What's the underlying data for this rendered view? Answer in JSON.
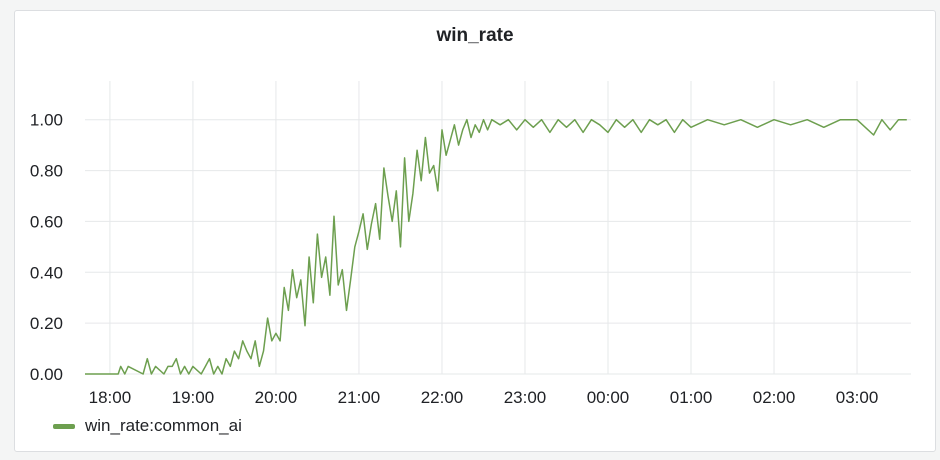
{
  "chart_data": {
    "type": "line",
    "title": "win_rate",
    "xlabel": "",
    "ylabel": "",
    "x_unit": "hours since 18:00",
    "xlim": [
      -0.3,
      9.65
    ],
    "ylim": [
      0,
      1.05
    ],
    "x_tick_labels": [
      "18:00",
      "19:00",
      "20:00",
      "21:00",
      "22:00",
      "23:00",
      "00:00",
      "01:00",
      "02:00",
      "03:00"
    ],
    "y_ticks": [
      0,
      0.2,
      0.4,
      0.6,
      0.8,
      1.0
    ],
    "y_tick_labels": [
      "0.00",
      "0.20",
      "0.40",
      "0.60",
      "0.80",
      "1.00"
    ],
    "grid": true,
    "legend_position": "bottom-left",
    "series": [
      {
        "name": "win_rate:common_ai",
        "color": "#6d9f4f",
        "x": [
          -0.3,
          0.1,
          0.13,
          0.18,
          0.22,
          0.4,
          0.45,
          0.5,
          0.55,
          0.65,
          0.7,
          0.75,
          0.8,
          0.85,
          0.9,
          0.95,
          1.0,
          1.1,
          1.15,
          1.2,
          1.25,
          1.3,
          1.35,
          1.4,
          1.45,
          1.5,
          1.55,
          1.6,
          1.65,
          1.7,
          1.75,
          1.8,
          1.85,
          1.9,
          1.95,
          2.0,
          2.05,
          2.1,
          2.15,
          2.2,
          2.25,
          2.3,
          2.35,
          2.4,
          2.45,
          2.5,
          2.55,
          2.6,
          2.65,
          2.7,
          2.75,
          2.8,
          2.85,
          2.9,
          2.95,
          3.0,
          3.05,
          3.1,
          3.15,
          3.2,
          3.25,
          3.3,
          3.35,
          3.4,
          3.45,
          3.5,
          3.55,
          3.6,
          3.65,
          3.7,
          3.75,
          3.8,
          3.85,
          3.9,
          3.95,
          4.0,
          4.05,
          4.1,
          4.15,
          4.2,
          4.25,
          4.3,
          4.35,
          4.4,
          4.45,
          4.5,
          4.55,
          4.6,
          4.7,
          4.8,
          4.9,
          5.0,
          5.1,
          5.2,
          5.3,
          5.4,
          5.5,
          5.6,
          5.7,
          5.8,
          5.9,
          6.0,
          6.1,
          6.2,
          6.3,
          6.4,
          6.5,
          6.6,
          6.7,
          6.8,
          6.9,
          7.0,
          7.2,
          7.4,
          7.6,
          7.8,
          8.0,
          8.2,
          8.4,
          8.6,
          8.8,
          9.0,
          9.2,
          9.3,
          9.4,
          9.5,
          9.6
        ],
        "values": [
          0,
          0,
          0.03,
          0,
          0.03,
          0,
          0.06,
          0,
          0.03,
          0,
          0.03,
          0.03,
          0.06,
          0,
          0.03,
          0,
          0.03,
          0,
          0.03,
          0.06,
          0,
          0.03,
          0,
          0.06,
          0.03,
          0.09,
          0.06,
          0.13,
          0.09,
          0.06,
          0.13,
          0.03,
          0.09,
          0.22,
          0.13,
          0.16,
          0.13,
          0.34,
          0.25,
          0.41,
          0.3,
          0.37,
          0.19,
          0.46,
          0.28,
          0.55,
          0.38,
          0.46,
          0.31,
          0.62,
          0.35,
          0.41,
          0.25,
          0.37,
          0.5,
          0.56,
          0.63,
          0.49,
          0.59,
          0.67,
          0.53,
          0.81,
          0.7,
          0.6,
          0.72,
          0.5,
          0.85,
          0.6,
          0.71,
          0.88,
          0.76,
          0.93,
          0.79,
          0.82,
          0.72,
          0.96,
          0.86,
          0.92,
          0.98,
          0.9,
          0.96,
          1.0,
          0.93,
          0.98,
          0.95,
          1.0,
          0.96,
          1.0,
          0.98,
          1.0,
          0.96,
          1.0,
          0.97,
          1.0,
          0.95,
          1.0,
          0.97,
          1.0,
          0.95,
          1.0,
          0.98,
          0.95,
          1.0,
          0.97,
          1.0,
          0.95,
          1.0,
          0.98,
          1.0,
          0.95,
          1.0,
          0.97,
          1.0,
          0.98,
          1.0,
          0.97,
          1.0,
          0.98,
          1.0,
          0.97,
          1.0,
          1.0,
          0.94,
          1.0,
          0.96,
          1.0,
          1.0
        ]
      }
    ]
  }
}
